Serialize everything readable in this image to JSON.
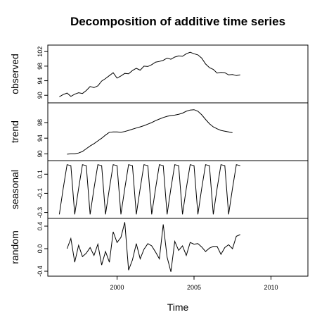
{
  "chart_data": {
    "type": "line",
    "title": "Decomposition of additive time series",
    "xlabel": "Time",
    "xlim": [
      1995.5,
      2012.4
    ],
    "x_ticks": [
      2000,
      2005,
      2010
    ],
    "x_tick_labels": [
      "2000",
      "2005",
      "2010"
    ],
    "series_start": 1996.25,
    "series_frequency": 4,
    "panels": [
      {
        "name": "observed",
        "ylabel": "observed",
        "ylim": [
          88.5,
          103.2
        ],
        "y_ticks": [
          90,
          94,
          98,
          102
        ],
        "y_tick_labels": [
          "90",
          "94",
          "98",
          "102"
        ],
        "values": [
          89.6,
          90.2,
          90.6,
          89.7,
          90.3,
          90.7,
          90.5,
          91.3,
          92.4,
          92.1,
          92.6,
          93.9,
          94.6,
          95.4,
          96.2,
          94.7,
          95.3,
          96.0,
          95.9,
          96.8,
          97.4,
          96.9,
          98.0,
          97.9,
          98.4,
          99.1,
          99.3,
          99.6,
          100.2,
          99.9,
          100.5,
          100.8,
          100.7,
          101.4,
          101.8,
          101.4,
          101.1,
          100.2,
          98.6,
          97.6,
          97.1,
          96.1,
          96.3,
          96.2,
          95.6,
          95.7,
          95.4,
          95.6
        ]
      },
      {
        "name": "trend",
        "ylabel": "trend",
        "ylim": [
          88.8,
          102.5
        ],
        "y_ticks": [
          90,
          94,
          98
        ],
        "y_tick_labels": [
          "90",
          "94",
          "98"
        ],
        "values": [
          null,
          null,
          89.9,
          90.0,
          90.0,
          90.2,
          90.6,
          91.3,
          92.0,
          92.6,
          93.3,
          94.0,
          94.8,
          95.5,
          95.6,
          95.6,
          95.5,
          95.7,
          96.0,
          96.3,
          96.6,
          96.9,
          97.2,
          97.6,
          98.0,
          98.5,
          98.9,
          99.3,
          99.6,
          99.8,
          99.9,
          100.1,
          100.4,
          100.9,
          101.2,
          101.3,
          100.9,
          100.0,
          98.8,
          97.7,
          96.9,
          96.4,
          96.0,
          95.8,
          95.6,
          95.4,
          null,
          null
        ]
      },
      {
        "name": "seasonal",
        "ylabel": "seasonal",
        "ylim": [
          -0.34,
          0.22
        ],
        "y_ticks": [
          -0.3,
          -0.1,
          0.1
        ],
        "y_tick_labels": [
          "-0.3",
          "-0.1",
          "0.1"
        ],
        "values": [
          -0.32,
          -0.05,
          0.2,
          0.19,
          -0.32,
          -0.05,
          0.2,
          0.19,
          -0.32,
          -0.05,
          0.2,
          0.19,
          -0.32,
          -0.05,
          0.2,
          0.19,
          -0.32,
          -0.05,
          0.2,
          0.19,
          -0.32,
          -0.05,
          0.2,
          0.19,
          -0.32,
          -0.05,
          0.2,
          0.19,
          -0.32,
          -0.05,
          0.2,
          0.19,
          -0.32,
          -0.05,
          0.2,
          0.19,
          -0.32,
          -0.05,
          0.2,
          0.19,
          -0.32,
          -0.05,
          0.2,
          0.19,
          -0.32,
          -0.05,
          0.2,
          0.19
        ]
      },
      {
        "name": "random",
        "ylabel": "random",
        "ylim": [
          -0.45,
          0.5
        ],
        "y_ticks": [
          -0.4,
          0.0,
          0.4
        ],
        "y_tick_labels": [
          "-0.4",
          "0.0",
          "0.4"
        ],
        "values": [
          null,
          null,
          0.0,
          0.18,
          -0.24,
          0.06,
          -0.14,
          -0.08,
          0.02,
          -0.12,
          0.08,
          -0.29,
          -0.05,
          -0.24,
          0.3,
          0.11,
          0.2,
          0.47,
          -0.38,
          -0.2,
          0.09,
          -0.18,
          -0.01,
          0.09,
          0.05,
          -0.06,
          -0.18,
          0.43,
          -0.15,
          -0.41,
          0.13,
          -0.03,
          0.05,
          -0.12,
          0.11,
          0.08,
          0.09,
          0.03,
          -0.05,
          0.01,
          0.04,
          0.04,
          -0.1,
          0.02,
          0.07,
          0.0,
          0.22,
          0.25
        ]
      }
    ]
  }
}
